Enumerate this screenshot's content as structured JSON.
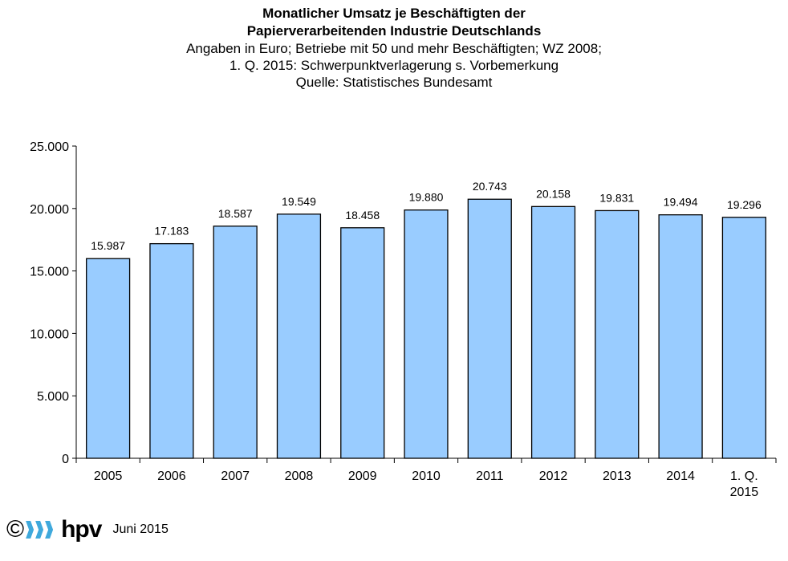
{
  "header": {
    "title_line1": "Monatlicher Umsatz je Beschäftigten der",
    "title_line2": "Papierverarbeitenden Industrie Deutschlands",
    "subtitle_line1": "Angaben in Euro; Betriebe mit 50 und mehr Beschäftigten; WZ 2008;",
    "subtitle_line2": "1. Q. 2015: Schwerpunktverlagerung s. Vorbemerkung",
    "subtitle_line3": "Quelle: Statistisches Bundesamt"
  },
  "chart_data": {
    "type": "bar",
    "title": "Monatlicher Umsatz je Beschäftigten der Papierverarbeitenden Industrie Deutschlands",
    "xlabel": "",
    "ylabel": "",
    "categories": [
      [
        "2005"
      ],
      [
        "2006"
      ],
      [
        "2007"
      ],
      [
        "2008"
      ],
      [
        "2009"
      ],
      [
        "2010"
      ],
      [
        "2011"
      ],
      [
        "2012"
      ],
      [
        "2013"
      ],
      [
        "2014"
      ],
      [
        "1. Q.",
        "2015"
      ]
    ],
    "values": [
      15987,
      17183,
      18587,
      19549,
      18458,
      19880,
      20743,
      20158,
      19831,
      19494,
      19296
    ],
    "data_labels": [
      "15.987",
      "17.183",
      "18.587",
      "19.549",
      "18.458",
      "19.880",
      "20.743",
      "20.158",
      "19.831",
      "19.494",
      "19.296"
    ],
    "ylim": [
      0,
      25000
    ],
    "yticks": [
      0,
      5000,
      10000,
      15000,
      20000,
      25000
    ],
    "ytick_labels": [
      "0",
      "5.000",
      "10.000",
      "15.000",
      "20.000",
      "25.000"
    ],
    "grid": false,
    "legend": "none",
    "bar_color": "#99ccff",
    "bar_edge_color": "#000000"
  },
  "footer": {
    "copyright_symbol": "©",
    "logo_text": "hpv",
    "logo_color": "#3fa9dc",
    "date": "Juni 2015"
  }
}
